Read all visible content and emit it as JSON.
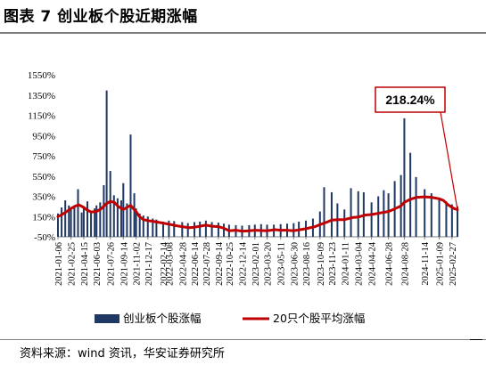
{
  "figure_title": "图表 7 创业板个股近期涨幅",
  "source_note": "资料来源：wind 资讯，华安证券研究所",
  "colors": {
    "bar": "#203864",
    "line": "#c00000",
    "rule": "#7f7f7f",
    "grid": "#d9d9d9"
  },
  "chart_data": {
    "type": "bar",
    "title": "",
    "xlabel": "",
    "ylabel": "",
    "ylim": [
      -50,
      1550
    ],
    "y_ticks": [
      -50,
      150,
      350,
      550,
      750,
      950,
      1150,
      1350,
      1550
    ],
    "y_tick_format": "percent",
    "x_range": [
      "2021-01-06",
      "2025-03-20"
    ],
    "x_ticks": [
      "2021-01-06",
      "2021-02-25",
      "2021-04-15",
      "2021-06-03",
      "2021-07-26",
      "2021-09-14",
      "2021-11-02",
      "2021-12-17",
      "2022-02-14",
      "2022-03-08",
      "2022-04-28",
      "2022-06-14",
      "2022-07-28",
      "2022-09-14",
      "2022-10-25",
      "2022-12-14",
      "2023-02-01",
      "2023-03-20",
      "2023-05-11",
      "2023-06-30",
      "2023-08-16",
      "2023-10-09",
      "2023-11-23",
      "2024-01-11",
      "2024-03-04",
      "2024-04-24",
      "2024-06-28",
      "2024-08-28",
      "2024-11-14",
      "2025-01-09",
      "2025-02-27"
    ],
    "annotation": {
      "text": "218.24%",
      "target_date": "2025-03-20",
      "target_value": 218.24
    },
    "series": [
      {
        "name": "创业板个股涨幅",
        "type": "bar",
        "points": [
          [
            "2021-01-06",
            180
          ],
          [
            "2021-01-20",
            240
          ],
          [
            "2021-02-03",
            310
          ],
          [
            "2021-02-17",
            260
          ],
          [
            "2021-02-25",
            220
          ],
          [
            "2021-03-10",
            260
          ],
          [
            "2021-03-24",
            420
          ],
          [
            "2021-04-07",
            190
          ],
          [
            "2021-04-15",
            240
          ],
          [
            "2021-04-29",
            300
          ],
          [
            "2021-05-13",
            200
          ],
          [
            "2021-05-27",
            230
          ],
          [
            "2021-06-03",
            260
          ],
          [
            "2021-06-17",
            290
          ],
          [
            "2021-07-01",
            460
          ],
          [
            "2021-07-12",
            1395
          ],
          [
            "2021-07-26",
            600
          ],
          [
            "2021-08-09",
            360
          ],
          [
            "2021-08-23",
            330
          ],
          [
            "2021-09-06",
            310
          ],
          [
            "2021-09-14",
            480
          ],
          [
            "2021-09-28",
            280
          ],
          [
            "2021-10-12",
            960
          ],
          [
            "2021-10-26",
            380
          ],
          [
            "2021-11-02",
            230
          ],
          [
            "2021-11-16",
            180
          ],
          [
            "2021-11-30",
            160
          ],
          [
            "2021-12-17",
            150
          ],
          [
            "2022-01-05",
            130
          ],
          [
            "2022-01-19",
            120
          ],
          [
            "2022-02-14",
            100
          ],
          [
            "2022-03-08",
            110
          ],
          [
            "2022-03-28",
            105
          ],
          [
            "2022-04-28",
            95
          ],
          [
            "2022-05-20",
            85
          ],
          [
            "2022-06-14",
            95
          ],
          [
            "2022-07-05",
            100
          ],
          [
            "2022-07-28",
            110
          ],
          [
            "2022-08-20",
            95
          ],
          [
            "2022-09-14",
            90
          ],
          [
            "2022-10-05",
            80
          ],
          [
            "2022-10-25",
            70
          ],
          [
            "2022-11-20",
            65
          ],
          [
            "2022-12-14",
            60
          ],
          [
            "2023-01-10",
            65
          ],
          [
            "2023-02-01",
            70
          ],
          [
            "2023-02-25",
            75
          ],
          [
            "2023-03-20",
            70
          ],
          [
            "2023-04-15",
            70
          ],
          [
            "2023-05-11",
            75
          ],
          [
            "2023-06-05",
            80
          ],
          [
            "2023-06-30",
            85
          ],
          [
            "2023-07-20",
            100
          ],
          [
            "2023-08-16",
            110
          ],
          [
            "2023-09-12",
            130
          ],
          [
            "2023-10-09",
            200
          ],
          [
            "2023-10-25",
            440
          ],
          [
            "2023-11-23",
            390
          ],
          [
            "2023-12-15",
            280
          ],
          [
            "2024-01-11",
            220
          ],
          [
            "2024-02-05",
            430
          ],
          [
            "2024-03-04",
            400
          ],
          [
            "2024-03-25",
            390
          ],
          [
            "2024-04-24",
            290
          ],
          [
            "2024-05-20",
            350
          ],
          [
            "2024-06-10",
            410
          ],
          [
            "2024-06-28",
            380
          ],
          [
            "2024-07-22",
            500
          ],
          [
            "2024-08-15",
            560
          ],
          [
            "2024-08-28",
            1120
          ],
          [
            "2024-09-20",
            780
          ],
          [
            "2024-10-12",
            540
          ],
          [
            "2024-11-14",
            420
          ],
          [
            "2024-12-10",
            380
          ],
          [
            "2025-01-09",
            330
          ],
          [
            "2025-02-05",
            300
          ],
          [
            "2025-02-27",
            270
          ],
          [
            "2025-03-20",
            250
          ]
        ]
      },
      {
        "name": "20只个股平均涨幅",
        "type": "line",
        "points": [
          [
            "2021-01-06",
            150
          ],
          [
            "2021-01-25",
            175
          ],
          [
            "2021-02-15",
            210
          ],
          [
            "2021-02-25",
            230
          ],
          [
            "2021-03-15",
            255
          ],
          [
            "2021-03-28",
            265
          ],
          [
            "2021-04-15",
            240
          ],
          [
            "2021-04-28",
            215
          ],
          [
            "2021-05-13",
            195
          ],
          [
            "2021-06-03",
            200
          ],
          [
            "2021-06-20",
            225
          ],
          [
            "2021-07-10",
            275
          ],
          [
            "2021-07-26",
            300
          ],
          [
            "2021-08-10",
            290
          ],
          [
            "2021-08-25",
            250
          ],
          [
            "2021-09-14",
            220
          ],
          [
            "2021-09-28",
            240
          ],
          [
            "2021-10-12",
            260
          ],
          [
            "2021-10-22",
            230
          ],
          [
            "2021-11-02",
            200
          ],
          [
            "2021-11-15",
            150
          ],
          [
            "2021-11-30",
            120
          ],
          [
            "2021-12-17",
            110
          ],
          [
            "2022-01-10",
            100
          ],
          [
            "2022-02-14",
            85
          ],
          [
            "2022-03-08",
            75
          ],
          [
            "2022-04-05",
            60
          ],
          [
            "2022-04-28",
            50
          ],
          [
            "2022-05-25",
            40
          ],
          [
            "2022-06-14",
            45
          ],
          [
            "2022-07-05",
            55
          ],
          [
            "2022-07-28",
            65
          ],
          [
            "2022-08-20",
            55
          ],
          [
            "2022-09-14",
            50
          ],
          [
            "2022-10-05",
            35
          ],
          [
            "2022-10-25",
            10
          ],
          [
            "2022-11-20",
            15
          ],
          [
            "2022-12-14",
            5
          ],
          [
            "2023-01-10",
            10
          ],
          [
            "2023-02-01",
            15
          ],
          [
            "2023-03-20",
            10
          ],
          [
            "2023-04-20",
            20
          ],
          [
            "2023-05-11",
            15
          ],
          [
            "2023-06-05",
            15
          ],
          [
            "2023-06-30",
            10
          ],
          [
            "2023-07-25",
            20
          ],
          [
            "2023-08-16",
            30
          ],
          [
            "2023-09-20",
            50
          ],
          [
            "2023-10-09",
            70
          ],
          [
            "2023-11-05",
            95
          ],
          [
            "2023-11-23",
            115
          ],
          [
            "2023-12-20",
            120
          ],
          [
            "2024-01-11",
            120
          ],
          [
            "2024-02-10",
            140
          ],
          [
            "2024-03-04",
            145
          ],
          [
            "2024-04-01",
            165
          ],
          [
            "2024-04-24",
            170
          ],
          [
            "2024-05-25",
            185
          ],
          [
            "2024-06-28",
            200
          ],
          [
            "2024-07-25",
            230
          ],
          [
            "2024-08-15",
            255
          ],
          [
            "2024-08-28",
            290
          ],
          [
            "2024-09-20",
            320
          ],
          [
            "2024-10-15",
            340
          ],
          [
            "2024-11-14",
            345
          ],
          [
            "2024-12-10",
            340
          ],
          [
            "2025-01-09",
            325
          ],
          [
            "2025-01-25",
            310
          ],
          [
            "2025-02-10",
            270
          ],
          [
            "2025-02-27",
            240
          ],
          [
            "2025-03-10",
            226
          ],
          [
            "2025-03-20",
            218.24
          ]
        ]
      }
    ],
    "legend": {
      "placement": "bottom"
    }
  }
}
